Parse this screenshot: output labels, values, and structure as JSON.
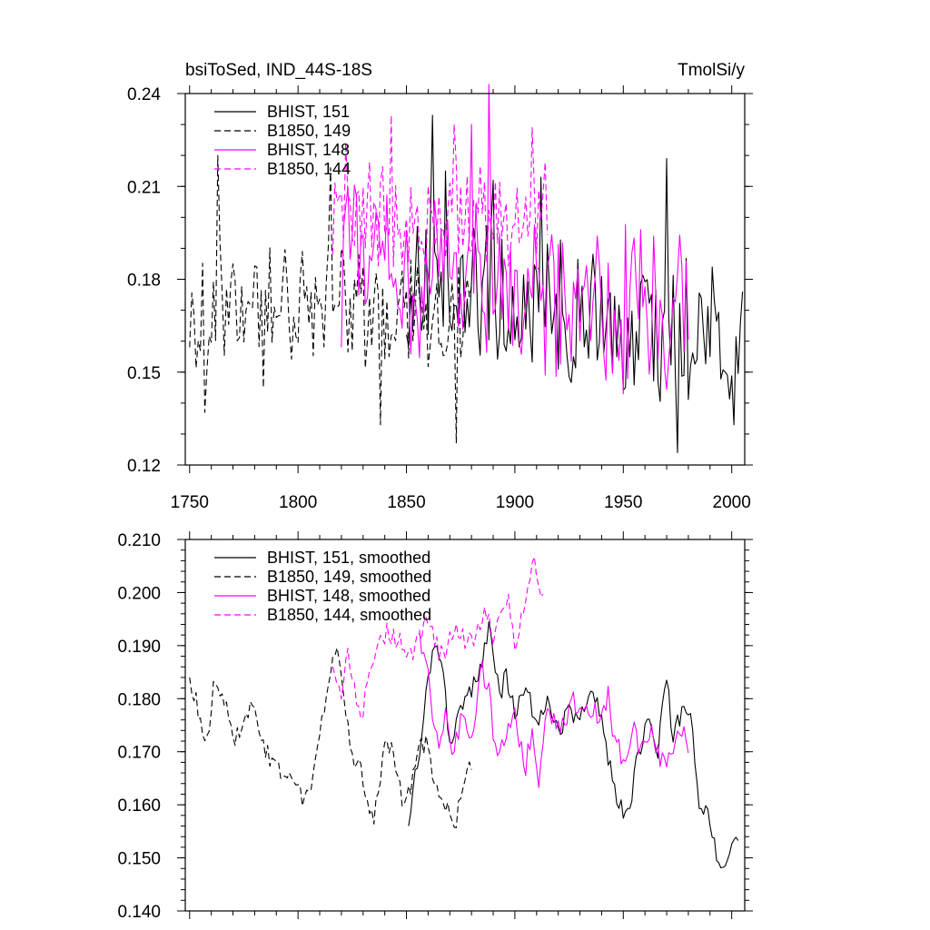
{
  "header": {
    "title_left": "bsiToSed, IND_44S-18S",
    "title_right": "TmolSi/y"
  },
  "colors": {
    "black": "#000000",
    "magenta": "#ff00ff"
  },
  "chart_data": [
    {
      "type": "line",
      "title": "bsiToSed, IND_44S-18S",
      "units": "TmolSi/y",
      "xlim": [
        1748,
        2006
      ],
      "ylim": [
        0.12,
        0.24
      ],
      "x_ticks": [
        1750,
        1800,
        1850,
        1900,
        1950,
        2000
      ],
      "y_ticks": [
        0.12,
        0.15,
        0.18,
        0.21,
        0.24
      ],
      "y_tick_labels": [
        "0.12",
        "0.15",
        "0.18",
        "0.21",
        "0.24"
      ],
      "legend_position": "top-left",
      "series": [
        {
          "name": "BHIST, 151",
          "color": "#000000",
          "dash": "solid",
          "x_start": 1850,
          "x_end": 2005,
          "generator": "noise",
          "mean": 0.178,
          "amp": 0.04,
          "trend_end_mean": 0.16,
          "seed": 151,
          "peaks": [
            [
              1862,
              0.233
            ],
            [
              1868,
              0.215
            ],
            [
              1890,
              0.212
            ],
            [
              1912,
              0.213
            ],
            [
              1970,
              0.219
            ],
            [
              1975,
              0.124
            ],
            [
              2001,
              0.133
            ],
            [
              2005,
              0.176
            ]
          ]
        },
        {
          "name": "B1850, 149",
          "color": "#000000",
          "dash": "dashed",
          "x_start": 1750,
          "x_end": 1880,
          "generator": "noise",
          "mean": 0.172,
          "amp": 0.035,
          "seed": 149,
          "peaks": [
            [
              1757,
              0.137
            ],
            [
              1763,
              0.22
            ],
            [
              1784,
              0.145
            ],
            [
              1815,
              0.216
            ],
            [
              1838,
              0.133
            ],
            [
              1873,
              0.127
            ]
          ]
        },
        {
          "name": "BHIST, 148",
          "color": "#ff00ff",
          "dash": "solid",
          "x_start": 1820,
          "x_end": 1980,
          "generator": "noise",
          "mean": 0.185,
          "amp": 0.045,
          "trend_end_mean": 0.168,
          "seed": 148,
          "peaks": [
            [
              1888,
              0.243
            ],
            [
              1880,
              0.23
            ],
            [
              1950,
              0.143
            ]
          ]
        },
        {
          "name": "B1850, 144",
          "color": "#ff00ff",
          "dash": "dashed",
          "x_start": 1816,
          "x_end": 1915,
          "generator": "noise",
          "mean": 0.2,
          "amp": 0.03,
          "seed": 144,
          "peaks": [
            [
              1843,
              0.233
            ],
            [
              1872,
              0.23
            ],
            [
              1908,
              0.229
            ],
            [
              1822,
              0.224
            ]
          ]
        }
      ]
    },
    {
      "type": "line",
      "xlim": [
        1748,
        2006
      ],
      "ylim": [
        0.14,
        0.21
      ],
      "x_ticks": [
        1750,
        1800,
        1850,
        1900,
        1950,
        2000
      ],
      "y_ticks": [
        0.14,
        0.15,
        0.16,
        0.17,
        0.18,
        0.19,
        0.2,
        0.21
      ],
      "y_tick_labels": [
        "0.140",
        "0.150",
        "0.160",
        "0.170",
        "0.180",
        "0.190",
        "0.200",
        "0.210"
      ],
      "legend_position": "top-left",
      "series": [
        {
          "name": "BHIST, 151, smoothed",
          "color": "#000000",
          "dash": "solid",
          "x_start": 1851,
          "x_end": 2003,
          "generator": "anchors",
          "jitter": 0.002,
          "seed": 1151,
          "anchors": [
            [
              1851,
              0.156
            ],
            [
              1855,
              0.168
            ],
            [
              1860,
              0.183
            ],
            [
              1863,
              0.19
            ],
            [
              1867,
              0.185
            ],
            [
              1870,
              0.17
            ],
            [
              1874,
              0.176
            ],
            [
              1880,
              0.182
            ],
            [
              1885,
              0.187
            ],
            [
              1888,
              0.194
            ],
            [
              1893,
              0.18
            ],
            [
              1896,
              0.185
            ],
            [
              1900,
              0.177
            ],
            [
              1905,
              0.182
            ],
            [
              1910,
              0.175
            ],
            [
              1915,
              0.18
            ],
            [
              1920,
              0.173
            ],
            [
              1925,
              0.178
            ],
            [
              1930,
              0.176
            ],
            [
              1935,
              0.182
            ],
            [
              1940,
              0.176
            ],
            [
              1945,
              0.165
            ],
            [
              1948,
              0.159
            ],
            [
              1953,
              0.159
            ],
            [
              1957,
              0.17
            ],
            [
              1962,
              0.177
            ],
            [
              1966,
              0.17
            ],
            [
              1970,
              0.185
            ],
            [
              1973,
              0.172
            ],
            [
              1978,
              0.18
            ],
            [
              1982,
              0.174
            ],
            [
              1985,
              0.161
            ],
            [
              1990,
              0.157
            ],
            [
              1995,
              0.147
            ],
            [
              1999,
              0.152
            ],
            [
              2001,
              0.155
            ],
            [
              2003,
              0.155
            ]
          ]
        },
        {
          "name": "B1850, 149, smoothed",
          "color": "#000000",
          "dash": "dashed",
          "x_start": 1750,
          "x_end": 1880,
          "generator": "anchors",
          "jitter": 0.002,
          "seed": 1149,
          "anchors": [
            [
              1750,
              0.184
            ],
            [
              1755,
              0.176
            ],
            [
              1759,
              0.172
            ],
            [
              1761,
              0.182
            ],
            [
              1766,
              0.18
            ],
            [
              1770,
              0.172
            ],
            [
              1775,
              0.176
            ],
            [
              1779,
              0.178
            ],
            [
              1783,
              0.172
            ],
            [
              1788,
              0.168
            ],
            [
              1793,
              0.165
            ],
            [
              1798,
              0.165
            ],
            [
              1803,
              0.16
            ],
            [
              1808,
              0.168
            ],
            [
              1811,
              0.176
            ],
            [
              1814,
              0.182
            ],
            [
              1817,
              0.189
            ],
            [
              1820,
              0.185
            ],
            [
              1824,
              0.17
            ],
            [
              1830,
              0.165
            ],
            [
              1835,
              0.157
            ],
            [
              1840,
              0.17
            ],
            [
              1844,
              0.171
            ],
            [
              1848,
              0.16
            ],
            [
              1853,
              0.165
            ],
            [
              1856,
              0.17
            ],
            [
              1859,
              0.172
            ],
            [
              1864,
              0.162
            ],
            [
              1868,
              0.16
            ],
            [
              1872,
              0.156
            ],
            [
              1877,
              0.164
            ],
            [
              1880,
              0.168
            ]
          ]
        },
        {
          "name": "BHIST, 148, smoothed",
          "color": "#ff00ff",
          "dash": "solid",
          "x_start": 1856,
          "x_end": 1980,
          "generator": "anchors",
          "jitter": 0.0025,
          "seed": 1148,
          "anchors": [
            [
              1856,
              0.193
            ],
            [
              1860,
              0.185
            ],
            [
              1864,
              0.172
            ],
            [
              1868,
              0.176
            ],
            [
              1872,
              0.17
            ],
            [
              1876,
              0.178
            ],
            [
              1881,
              0.172
            ],
            [
              1884,
              0.185
            ],
            [
              1888,
              0.184
            ],
            [
              1891,
              0.17
            ],
            [
              1896,
              0.172
            ],
            [
              1900,
              0.176
            ],
            [
              1905,
              0.168
            ],
            [
              1908,
              0.172
            ],
            [
              1911,
              0.165
            ],
            [
              1915,
              0.178
            ],
            [
              1920,
              0.175
            ],
            [
              1925,
              0.178
            ],
            [
              1930,
              0.18
            ],
            [
              1935,
              0.178
            ],
            [
              1940,
              0.176
            ],
            [
              1943,
              0.181
            ],
            [
              1946,
              0.172
            ],
            [
              1950,
              0.168
            ],
            [
              1954,
              0.175
            ],
            [
              1958,
              0.17
            ],
            [
              1962,
              0.174
            ],
            [
              1966,
              0.17
            ],
            [
              1970,
              0.168
            ],
            [
              1974,
              0.172
            ],
            [
              1978,
              0.175
            ],
            [
              1980,
              0.168
            ]
          ]
        },
        {
          "name": "B1850, 144, smoothed",
          "color": "#ff00ff",
          "dash": "dashed",
          "x_start": 1816,
          "x_end": 1913,
          "generator": "anchors",
          "jitter": 0.002,
          "seed": 1144,
          "anchors": [
            [
              1816,
              0.186
            ],
            [
              1820,
              0.18
            ],
            [
              1823,
              0.189
            ],
            [
              1827,
              0.18
            ],
            [
              1829,
              0.176
            ],
            [
              1833,
              0.184
            ],
            [
              1837,
              0.19
            ],
            [
              1841,
              0.193
            ],
            [
              1845,
              0.191
            ],
            [
              1849,
              0.19
            ],
            [
              1853,
              0.188
            ],
            [
              1857,
              0.193
            ],
            [
              1861,
              0.195
            ],
            [
              1865,
              0.188
            ],
            [
              1869,
              0.19
            ],
            [
              1874,
              0.193
            ],
            [
              1878,
              0.19
            ],
            [
              1882,
              0.192
            ],
            [
              1886,
              0.196
            ],
            [
              1890,
              0.192
            ],
            [
              1894,
              0.198
            ],
            [
              1897,
              0.2
            ],
            [
              1900,
              0.19
            ],
            [
              1903,
              0.195
            ],
            [
              1906,
              0.2
            ],
            [
              1909,
              0.208
            ],
            [
              1911,
              0.2
            ],
            [
              1913,
              0.199
            ]
          ]
        }
      ]
    }
  ]
}
